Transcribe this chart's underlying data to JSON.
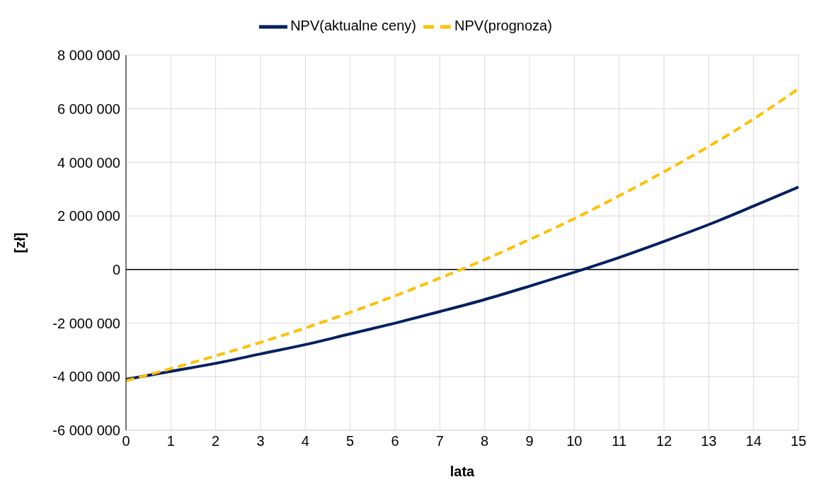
{
  "chart_data": {
    "type": "line",
    "xlabel": "lata",
    "ylabel": "[zł]",
    "x": [
      0,
      1,
      2,
      3,
      4,
      5,
      6,
      7,
      8,
      9,
      10,
      11,
      12,
      13,
      14,
      15
    ],
    "series": [
      {
        "name": "NPV(aktualne ceny)",
        "color": "#002060",
        "line_style": "solid",
        "values": [
          -4100000,
          -3800000,
          -3500000,
          -3150000,
          -2800000,
          -2400000,
          -2000000,
          -1570000,
          -1120000,
          -620000,
          -100000,
          450000,
          1050000,
          1680000,
          2370000,
          3080000
        ]
      },
      {
        "name": "NPV(prognoza)",
        "color": "#ffc000",
        "line_style": "dashed",
        "values": [
          -4150000,
          -3700000,
          -3220000,
          -2720000,
          -2180000,
          -1600000,
          -980000,
          -320000,
          370000,
          1120000,
          1900000,
          2750000,
          3650000,
          4600000,
          5620000,
          6750000
        ]
      }
    ],
    "xlim": [
      0,
      15
    ],
    "xticks": [
      0,
      1,
      2,
      3,
      4,
      5,
      6,
      7,
      8,
      9,
      10,
      11,
      12,
      13,
      14,
      15
    ],
    "ylim": [
      -6000000,
      8000000
    ],
    "yticks": [
      {
        "value": -6000000,
        "label": "-6 000 000"
      },
      {
        "value": -4000000,
        "label": "-4 000 000"
      },
      {
        "value": -2000000,
        "label": "-2 000 000"
      },
      {
        "value": 0,
        "label": "0"
      },
      {
        "value": 2000000,
        "label": "2 000 000"
      },
      {
        "value": 4000000,
        "label": "4 000 000"
      },
      {
        "value": 6000000,
        "label": "6 000 000"
      },
      {
        "value": 8000000,
        "label": "8 000 000"
      }
    ],
    "ref_lines": [
      {
        "axis": "y",
        "value": 0,
        "color": "#000000"
      }
    ],
    "grid": true,
    "legend": "top",
    "marker": "none"
  }
}
